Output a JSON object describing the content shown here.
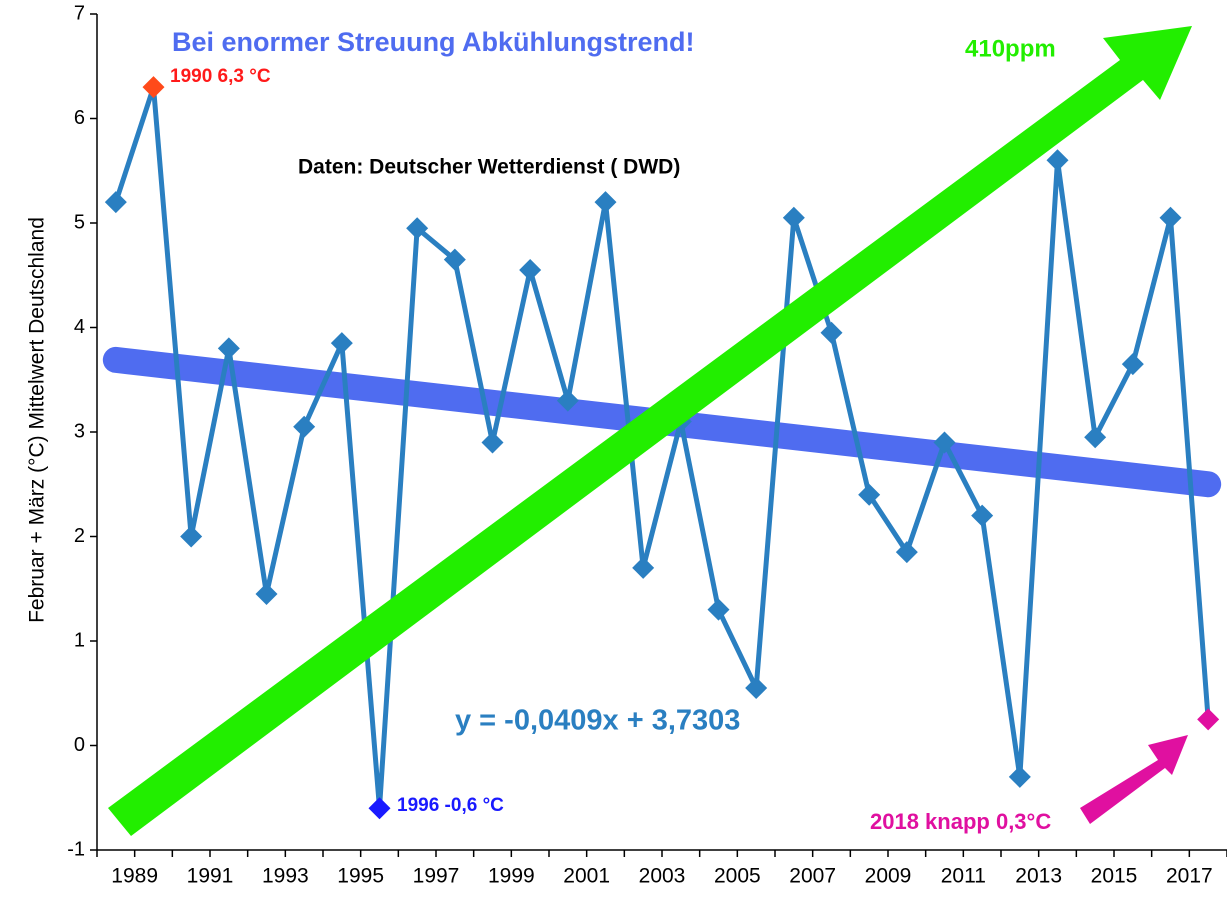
{
  "chart_data": {
    "type": "line",
    "y_label": "Februar + März (°C) Mittelwert Deutschland",
    "categories": [
      "1989",
      null,
      "1991",
      null,
      "1993",
      null,
      "1995",
      null,
      "1997",
      null,
      "1999",
      null,
      "2001",
      null,
      "2003",
      null,
      "2005",
      null,
      "2007",
      null,
      "2009",
      null,
      "2011",
      null,
      "2013",
      null,
      "2015",
      null,
      "2017",
      null
    ],
    "series": [
      {
        "color": "#2a7fc1",
        "values": [
          5.2,
          6.3,
          2.0,
          3.8,
          1.45,
          3.05,
          3.85,
          -0.6,
          4.95,
          4.65,
          2.9,
          4.55,
          3.3,
          5.2,
          1.7,
          3.1,
          1.3,
          0.55,
          5.05,
          3.95,
          2.4,
          1.85,
          2.9,
          2.2,
          -0.3,
          5.6,
          2.95,
          3.65,
          5.05,
          0.25
        ],
        "marker_colors": [
          "#2a7fc1",
          "#ff4a1a",
          "#2a7fc1",
          "#2a7fc1",
          "#2a7fc1",
          "#2a7fc1",
          "#2a7fc1",
          "#1a1aff",
          "#2a7fc1",
          "#2a7fc1",
          "#2a7fc1",
          "#2a7fc1",
          "#2a7fc1",
          "#2a7fc1",
          "#2a7fc1",
          "#2a7fc1",
          "#2a7fc1",
          "#2a7fc1",
          "#2a7fc1",
          "#2a7fc1",
          "#2a7fc1",
          "#2a7fc1",
          "#2a7fc1",
          "#2a7fc1",
          "#2a7fc1",
          "#2a7fc1",
          "#2a7fc1",
          "#2a7fc1",
          "#2a7fc1",
          "#e010a0"
        ]
      }
    ],
    "trend": {
      "color": "#4f6cf0",
      "values": [
        3.69,
        2.5
      ]
    },
    "ylim": [
      -1,
      7
    ],
    "yticks": [
      -1,
      0,
      1,
      2,
      3,
      4,
      5,
      6,
      7
    ],
    "annotations": {
      "headline": "Bei enormer Streuung Abkühlungstrend!",
      "source": "Daten: Deutscher Wetterdienst ( DWD)",
      "co2": "410ppm",
      "equation": "y = -0,0409x + 3,7303",
      "max": "1990 6,3 °C",
      "min": "1996 -0,6 °C",
      "last": "2018 knapp 0,3°C"
    }
  }
}
